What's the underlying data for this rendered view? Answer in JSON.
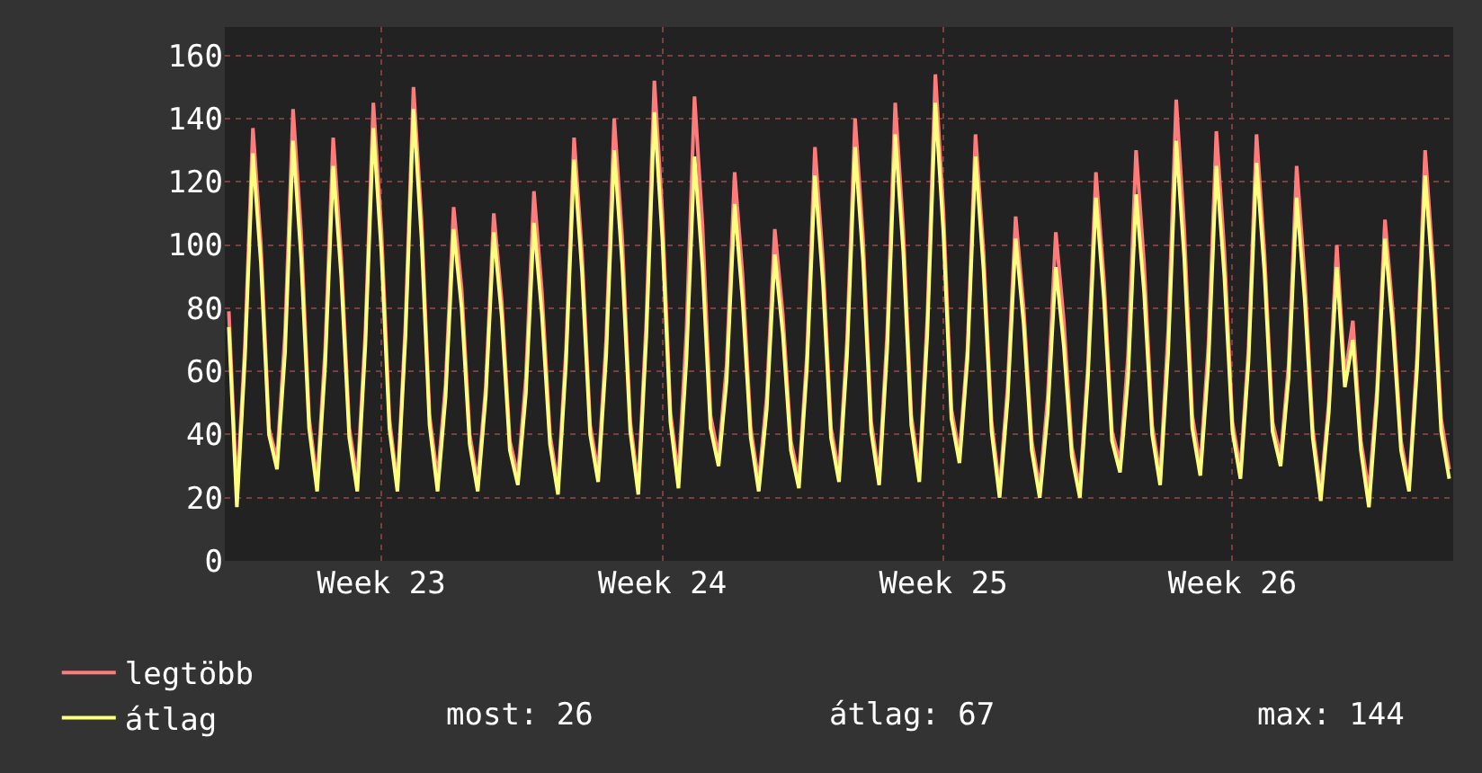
{
  "chart_data": {
    "type": "line",
    "categories": [
      null,
      null,
      null,
      null,
      null,
      null,
      null,
      null,
      null,
      null,
      null,
      null,
      null,
      null,
      null,
      null,
      null,
      null,
      null,
      "Week 23",
      null,
      null,
      null,
      null,
      null,
      null,
      null,
      null,
      null,
      null,
      null,
      null,
      null,
      null,
      null,
      null,
      null,
      null,
      null,
      null,
      null,
      null,
      null,
      null,
      null,
      null,
      null,
      null,
      null,
      null,
      null,
      null,
      null,
      null,
      "Week 24",
      null,
      null,
      null,
      null,
      null,
      null,
      null,
      null,
      null,
      null,
      null,
      null,
      null,
      null,
      null,
      null,
      null,
      null,
      null,
      null,
      null,
      null,
      null,
      null,
      null,
      null,
      null,
      null,
      null,
      null,
      null,
      null,
      null,
      null,
      "Week 25",
      null,
      null,
      null,
      null,
      null,
      null,
      null,
      null,
      null,
      null,
      null,
      null,
      null,
      null,
      null,
      null,
      null,
      null,
      null,
      null,
      null,
      null,
      null,
      null,
      null,
      null,
      null,
      null,
      null,
      null,
      null,
      null,
      null,
      null,
      null,
      "Week 26",
      null,
      null,
      null,
      null,
      null,
      null,
      null,
      null,
      null,
      null,
      null,
      null,
      null,
      null,
      null,
      null,
      null,
      null,
      null,
      null,
      null,
      null,
      null,
      null,
      null,
      null,
      null
    ],
    "series": [
      {
        "name": "legtöbb",
        "color": "#ff7b7b",
        "values": [
          79,
          21,
          68,
          137,
          100,
          42,
          32,
          72,
          143,
          104,
          45,
          25,
          67,
          134,
          96,
          42,
          26,
          72,
          145,
          105,
          45,
          24,
          75,
          150,
          108,
          46,
          26,
          56,
          112,
          86,
          40,
          25,
          55,
          110,
          82,
          38,
          27,
          58,
          117,
          85,
          40,
          24,
          67,
          134,
          97,
          43,
          28,
          70,
          140,
          102,
          44,
          24,
          76,
          152,
          110,
          47,
          27,
          73,
          147,
          106,
          46,
          33,
          62,
          123,
          90,
          42,
          25,
          52,
          105,
          78,
          38,
          26,
          65,
          131,
          95,
          42,
          28,
          70,
          140,
          102,
          44,
          27,
          72,
          145,
          105,
          46,
          28,
          77,
          154,
          111,
          48,
          34,
          67,
          135,
          98,
          44,
          23,
          55,
          109,
          80,
          38,
          23,
          52,
          104,
          76,
          36,
          23,
          62,
          123,
          89,
          41,
          31,
          65,
          130,
          94,
          43,
          27,
          73,
          146,
          105,
          46,
          30,
          68,
          136,
          98,
          44,
          29,
          67,
          135,
          97,
          44,
          33,
          62,
          125,
          90,
          42,
          22,
          50,
          100,
          58,
          76,
          38,
          22,
          54,
          108,
          78,
          38,
          24,
          65,
          130,
          94,
          45,
          29
        ]
      },
      {
        "name": "átlag",
        "color": "#ffff7f",
        "values": [
          74,
          17,
          64,
          129,
          94,
          40,
          29,
          66,
          133,
          96,
          42,
          22,
          62,
          125,
          90,
          39,
          22,
          68,
          137,
          98,
          42,
          22,
          71,
          143,
          102,
          43,
          22,
          52,
          105,
          80,
          37,
          22,
          52,
          104,
          77,
          35,
          24,
          53,
          107,
          78,
          37,
          21,
          63,
          127,
          91,
          40,
          25,
          65,
          130,
          94,
          41,
          21,
          71,
          142,
          102,
          44,
          23,
          64,
          128,
          93,
          42,
          30,
          57,
          113,
          82,
          39,
          22,
          48,
          97,
          72,
          35,
          23,
          61,
          122,
          88,
          39,
          25,
          65,
          131,
          95,
          41,
          24,
          67,
          135,
          98,
          43,
          25,
          72,
          145,
          104,
          45,
          31,
          64,
          128,
          92,
          41,
          20,
          51,
          102,
          75,
          35,
          20,
          47,
          93,
          68,
          33,
          20,
          58,
          115,
          83,
          38,
          28,
          58,
          116,
          85,
          40,
          24,
          66,
          133,
          96,
          42,
          27,
          62,
          125,
          90,
          41,
          26,
          63,
          126,
          91,
          41,
          30,
          58,
          115,
          83,
          39,
          19,
          47,
          93,
          55,
          70,
          35,
          17,
          51,
          102,
          73,
          35,
          22,
          61,
          122,
          88,
          41,
          26
        ]
      }
    ],
    "ylim": [
      0,
      169
    ],
    "yticks": [
      0,
      20,
      40,
      60,
      80,
      100,
      120,
      140,
      160
    ],
    "grid": true,
    "legend": "bottom left",
    "annotations": [
      "most: 26",
      "átlag: 67",
      "max: 144"
    ]
  }
}
